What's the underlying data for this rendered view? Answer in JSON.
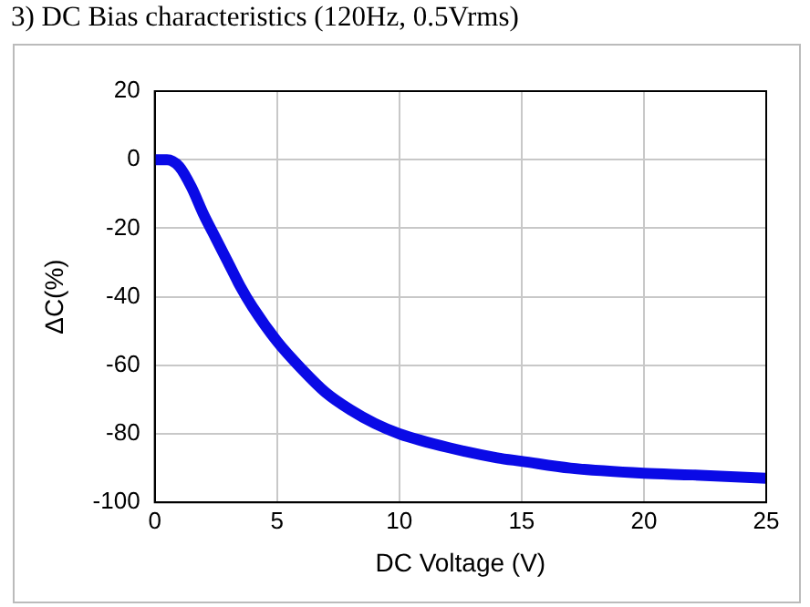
{
  "chart_data": {
    "type": "line",
    "title": "3) DC Bias characteristics (120Hz, 0.5Vrms)",
    "xlabel": "DC Voltage (V)",
    "ylabel": "ΔC(%)",
    "x": [
      0,
      0.5,
      1,
      1.5,
      2,
      2.5,
      3,
      3.5,
      4,
      5,
      6,
      7,
      8,
      9,
      10,
      12,
      14,
      15,
      17,
      20,
      22,
      25
    ],
    "series": [
      {
        "color": "#0a0ae6",
        "values": [
          0,
          0,
          -2,
          -8,
          -16,
          -23,
          -30,
          -37,
          -43,
          -53,
          -61,
          -68,
          -73,
          -77,
          -80,
          -84,
          -87,
          -88,
          -90,
          -91.5,
          -92,
          -93
        ]
      }
    ],
    "xlim": [
      0,
      25
    ],
    "xticks": [
      0,
      5,
      10,
      15,
      20,
      25
    ],
    "ylim": [
      -100,
      20
    ],
    "yticks": [
      -100,
      -80,
      -60,
      -40,
      -20,
      0,
      20
    ],
    "grid": true,
    "legend": false,
    "marker": "none",
    "line_style": "solid"
  }
}
